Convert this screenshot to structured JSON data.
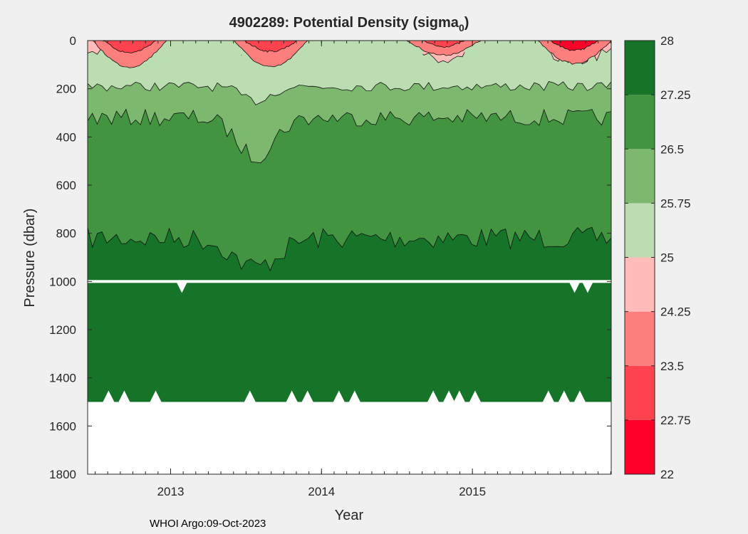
{
  "chart_data": {
    "type": "heatmap",
    "title": "4902289: Potential Density (sigma",
    "title_subscript": "0",
    "title_suffix": ")",
    "xlabel": "Year",
    "ylabel": "Pressure (dbar)",
    "x_range": [
      2012.45,
      2015.92
    ],
    "y_range": [
      0,
      1800
    ],
    "x_ticks": [
      {
        "value": 2013,
        "label": "2013"
      },
      {
        "value": 2014,
        "label": "2014"
      },
      {
        "value": 2015,
        "label": "2015"
      }
    ],
    "y_ticks": [
      {
        "value": 0,
        "label": "0"
      },
      {
        "value": 200,
        "label": "200"
      },
      {
        "value": 400,
        "label": "400"
      },
      {
        "value": 600,
        "label": "600"
      },
      {
        "value": 800,
        "label": "800"
      },
      {
        "value": 1000,
        "label": "1000"
      },
      {
        "value": 1200,
        "label": "1200"
      },
      {
        "value": 1400,
        "label": "1400"
      },
      {
        "value": 1600,
        "label": "1600"
      },
      {
        "value": 1800,
        "label": "1800"
      }
    ],
    "colorbar": {
      "range": [
        22,
        28
      ],
      "tick_labels": [
        "28",
        "27.25",
        "26.5",
        "25.75",
        "25",
        "24.25",
        "23.5",
        "22.75",
        "22"
      ],
      "levels": [
        {
          "from": 22,
          "to": 22.75,
          "color": "#ff0028"
        },
        {
          "from": 22.75,
          "to": 23.5,
          "color": "#fe424e"
        },
        {
          "from": 23.5,
          "to": 24.25,
          "color": "#fc7f7e"
        },
        {
          "from": 24.25,
          "to": 25,
          "color": "#ffbcb8"
        },
        {
          "from": 25,
          "to": 25.75,
          "color": "#bcdcb2"
        },
        {
          "from": 25.75,
          "to": 26.5,
          "color": "#7cb86e"
        },
        {
          "from": 26.5,
          "to": 27.25,
          "color": "#429441"
        },
        {
          "from": 27.25,
          "to": 28,
          "color": "#157428"
        }
      ]
    },
    "isopycnal_depths_dbar": {
      "sigma_27_25_mean": 820,
      "sigma_26_5_mean": 320,
      "sigma_25_75_mean": 190,
      "sigma_25_mean": 110
    },
    "profile_max_pressure_dbar": 1500,
    "data_gap_pressure_dbar": 1000
  },
  "footer": {
    "credit": "WHOI Argo:09-Oct-2023"
  }
}
